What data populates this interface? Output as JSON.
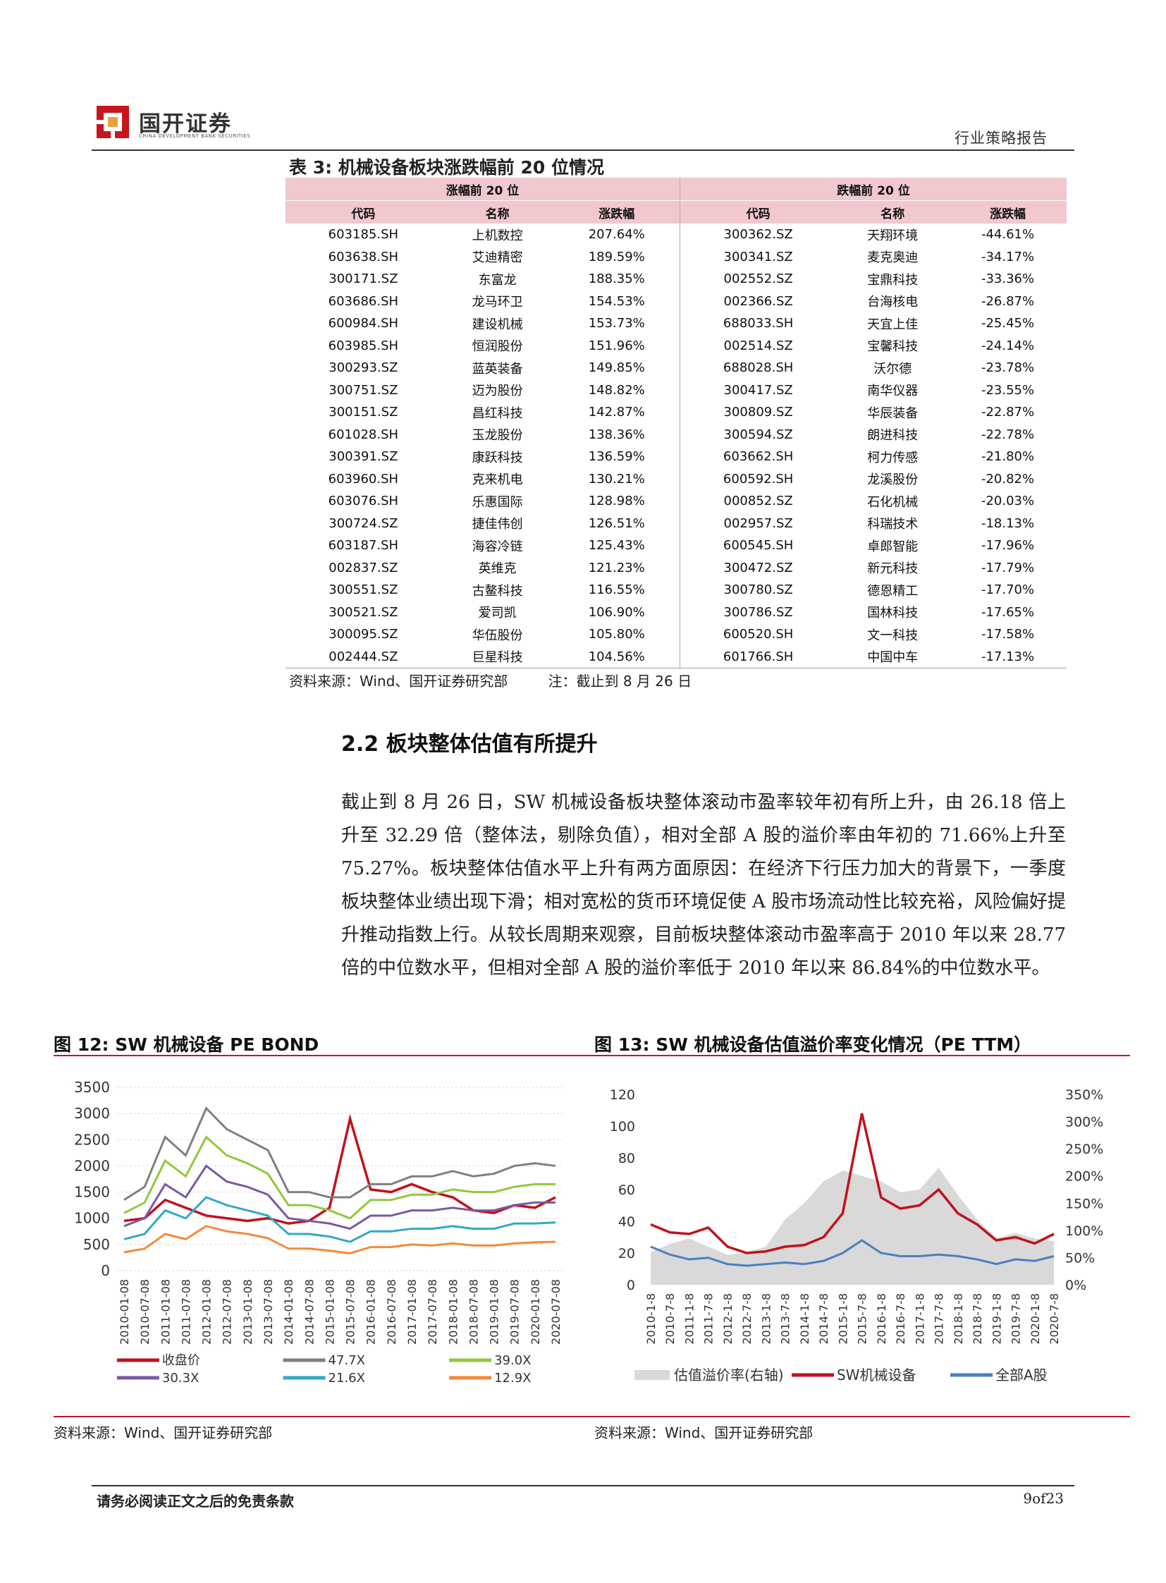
{
  "header": {
    "logo_name": "国开证券",
    "logo_sub": "CHINA DEVELOPMENT BANK SECURITIES",
    "report_type": "行业策略报告"
  },
  "table": {
    "caption": "表 3:  机械设备板块涨跌幅前 20 位情况",
    "group_rise": "涨幅前 20 位",
    "group_fall": "跌幅前 20 位",
    "col_code": "代码",
    "col_name": "名称",
    "col_change": "涨跌幅",
    "rows": [
      [
        "603185.SH",
        "上机数控",
        "207.64%",
        "300362.SZ",
        "天翔环境",
        "-44.61%"
      ],
      [
        "603638.SH",
        "艾迪精密",
        "189.59%",
        "300341.SZ",
        "麦克奥迪",
        "-34.17%"
      ],
      [
        "300171.SZ",
        "东富龙",
        "188.35%",
        "002552.SZ",
        "宝鼎科技",
        "-33.36%"
      ],
      [
        "603686.SH",
        "龙马环卫",
        "154.53%",
        "002366.SZ",
        "台海核电",
        "-26.87%"
      ],
      [
        "600984.SH",
        "建设机械",
        "153.73%",
        "688033.SH",
        "天宜上佳",
        "-25.45%"
      ],
      [
        "603985.SH",
        "恒润股份",
        "151.96%",
        "002514.SZ",
        "宝馨科技",
        "-24.14%"
      ],
      [
        "300293.SZ",
        "蓝英装备",
        "149.85%",
        "688028.SH",
        "沃尔德",
        "-23.78%"
      ],
      [
        "300751.SZ",
        "迈为股份",
        "148.82%",
        "300417.SZ",
        "南华仪器",
        "-23.55%"
      ],
      [
        "300151.SZ",
        "昌红科技",
        "142.87%",
        "300809.SZ",
        "华辰装备",
        "-22.87%"
      ],
      [
        "601028.SH",
        "玉龙股份",
        "138.36%",
        "300594.SZ",
        "朗进科技",
        "-22.78%"
      ],
      [
        "300391.SZ",
        "康跃科技",
        "136.59%",
        "603662.SH",
        "柯力传感",
        "-21.80%"
      ],
      [
        "603960.SH",
        "克来机电",
        "130.21%",
        "600592.SH",
        "龙溪股份",
        "-20.82%"
      ],
      [
        "603076.SH",
        "乐惠国际",
        "128.98%",
        "000852.SZ",
        "石化机械",
        "-20.03%"
      ],
      [
        "300724.SZ",
        "捷佳伟创",
        "126.51%",
        "002957.SZ",
        "科瑞技术",
        "-18.13%"
      ],
      [
        "603187.SH",
        "海容冷链",
        "125.43%",
        "600545.SH",
        "卓郎智能",
        "-17.96%"
      ],
      [
        "002837.SZ",
        "英维克",
        "121.23%",
        "300472.SZ",
        "新元科技",
        "-17.79%"
      ],
      [
        "300551.SZ",
        "古鳌科技",
        "116.55%",
        "300780.SZ",
        "德恩精工",
        "-17.70%"
      ],
      [
        "300521.SZ",
        "爱司凯",
        "106.90%",
        "300786.SZ",
        "国林科技",
        "-17.65%"
      ],
      [
        "300095.SZ",
        "华伍股份",
        "105.80%",
        "600520.SH",
        "文一科技",
        "-17.58%"
      ],
      [
        "002444.SZ",
        "巨星科技",
        "104.56%",
        "601766.SH",
        "中国中车",
        "-17.13%"
      ]
    ],
    "source": "资料来源：Wind、国开证券研究部         注：截止到 8 月 26 日"
  },
  "section": {
    "title": "2.2 板块整体估值有所提升",
    "paragraph": "截止到 8 月 26 日，SW 机械设备板块整体滚动市盈率较年初有所上升，由 26.18 倍上升至 32.29 倍（整体法，剔除负值），相对全部 A 股的溢价率由年初的 71.66%上升至 75.27%。板块整体估值水平上升有两方面原因：在经济下行压力加大的背景下，一季度板块整体业绩出现下滑；相对宽松的货币环境促使 A 股市场流动性比较充裕，风险偏好提升推动指数上行。从较长周期来观察，目前板块整体滚动市盈率高于 2010 年以来 28.77 倍的中位数水平，但相对全部 A 股的溢价率低于 2010 年以来 86.84%的中位数水平。"
  },
  "figures": {
    "fig12_title": "图 12:  SW 机械设备 PE BOND",
    "fig13_title": "图 13:  SW 机械设备估值溢价率变化情况（PE TTM）",
    "fig12_source": "资料来源：Wind、国开证券研究部",
    "fig13_source": "资料来源：Wind、国开证券研究部"
  },
  "chart_data": [
    {
      "type": "line",
      "title": "",
      "x": [
        "2010-01-08",
        "2010-07-08",
        "2011-01-08",
        "2011-07-08",
        "2012-01-08",
        "2012-07-08",
        "2013-01-08",
        "2013-07-08",
        "2014-01-08",
        "2014-07-08",
        "2015-01-08",
        "2015-07-08",
        "2016-01-08",
        "2016-07-08",
        "2017-01-08",
        "2017-07-08",
        "2018-01-08",
        "2018-07-08",
        "2019-01-08",
        "2019-07-08",
        "2020-01-08",
        "2020-07-08"
      ],
      "ylim": [
        0,
        3500
      ],
      "yticks": [
        "0",
        "500",
        "1000",
        "1500",
        "2000",
        "2500",
        "3000",
        "3500"
      ],
      "grid": true,
      "legend_position": "bottom",
      "series": [
        {
          "name": "收盘价",
          "color": "#c0121e",
          "values": [
            950,
            1000,
            1350,
            1200,
            1050,
            1000,
            950,
            1000,
            900,
            950,
            1200,
            2900,
            1550,
            1500,
            1650,
            1500,
            1400,
            1150,
            1100,
            1250,
            1200,
            1400
          ]
        },
        {
          "name": "47.7X",
          "color": "#7f7f7f",
          "values": [
            1350,
            1600,
            2550,
            2200,
            3100,
            2700,
            2500,
            2300,
            1500,
            1500,
            1400,
            1400,
            1650,
            1650,
            1800,
            1800,
            1900,
            1800,
            1850,
            2000,
            2050,
            2000
          ]
        },
        {
          "name": "39.0X",
          "color": "#92c83e",
          "values": [
            1100,
            1300,
            2100,
            1800,
            2550,
            2200,
            2050,
            1850,
            1250,
            1250,
            1150,
            1000,
            1350,
            1350,
            1450,
            1450,
            1550,
            1500,
            1500,
            1600,
            1650,
            1650
          ]
        },
        {
          "name": "30.3X",
          "color": "#7b57a4",
          "values": [
            850,
            1000,
            1650,
            1400,
            2000,
            1700,
            1600,
            1450,
            1000,
            950,
            900,
            800,
            1050,
            1050,
            1150,
            1150,
            1200,
            1150,
            1150,
            1250,
            1300,
            1300
          ]
        },
        {
          "name": "21.6X",
          "color": "#34a8c4",
          "values": [
            600,
            700,
            1150,
            1000,
            1400,
            1250,
            1150,
            1050,
            700,
            700,
            650,
            550,
            750,
            750,
            800,
            800,
            850,
            800,
            800,
            900,
            900,
            920
          ]
        },
        {
          "name": "12.9X",
          "color": "#f28a3b",
          "values": [
            350,
            420,
            700,
            600,
            850,
            750,
            700,
            620,
            420,
            420,
            380,
            330,
            450,
            450,
            500,
            480,
            520,
            480,
            480,
            520,
            540,
            550
          ]
        }
      ]
    },
    {
      "type": "line",
      "title": "",
      "x": [
        "2010-1-8",
        "2010-7-8",
        "2011-1-8",
        "2011-7-8",
        "2012-1-8",
        "2012-7-8",
        "2013-1-8",
        "2013-7-8",
        "2014-1-8",
        "2014-7-8",
        "2015-1-8",
        "2015-7-8",
        "2016-1-8",
        "2016-7-8",
        "2017-1-8",
        "2017-7-8",
        "2018-1-8",
        "2018-7-8",
        "2019-1-8",
        "2019-7-8",
        "2020-1-8",
        "2020-7-8"
      ],
      "ylim": [
        0,
        120
      ],
      "yticks": [
        "0",
        "20",
        "40",
        "60",
        "80",
        "100",
        "120"
      ],
      "y2lim": [
        0,
        350
      ],
      "y2ticks": [
        "0%",
        "50%",
        "100%",
        "150%",
        "200%",
        "250%",
        "300%",
        "350%"
      ],
      "grid": false,
      "legend_position": "bottom",
      "series": [
        {
          "name": "估值溢价率(右轴)",
          "type": "area",
          "axis": "right",
          "color": "#d9d9d9",
          "values": [
            60,
            75,
            85,
            70,
            55,
            60,
            70,
            120,
            150,
            190,
            210,
            200,
            190,
            170,
            175,
            215,
            165,
            120,
            85,
            95,
            85,
            80
          ]
        },
        {
          "name": "SW机械设备",
          "axis": "left",
          "color": "#c0121e",
          "values": [
            38,
            33,
            32,
            36,
            24,
            20,
            21,
            24,
            25,
            30,
            45,
            108,
            55,
            48,
            50,
            60,
            45,
            38,
            28,
            30,
            26,
            32
          ]
        },
        {
          "name": "全部A股",
          "axis": "left",
          "color": "#4a7fbf",
          "values": [
            24,
            19,
            16,
            17,
            13,
            12,
            13,
            14,
            13,
            15,
            20,
            28,
            20,
            18,
            18,
            19,
            18,
            16,
            13,
            16,
            15,
            18
          ]
        }
      ]
    }
  ],
  "footer": {
    "disclaimer": "请务必阅读正文之后的免责条款",
    "page": "9of23"
  }
}
